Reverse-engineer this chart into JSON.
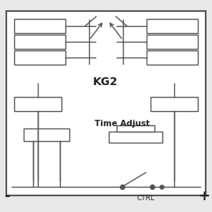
{
  "bg_color": "#e8e8e8",
  "box_color": "white",
  "border_color": "#555555",
  "line_color": "#555555",
  "text_color": "#222222",
  "title": "KG2",
  "subtitle": "Time Adjust",
  "ctrl_label": "CTRL",
  "minus_label": "-",
  "plus_label": "+",
  "figsize": [
    2.69,
    2.69
  ],
  "dpi": 100
}
